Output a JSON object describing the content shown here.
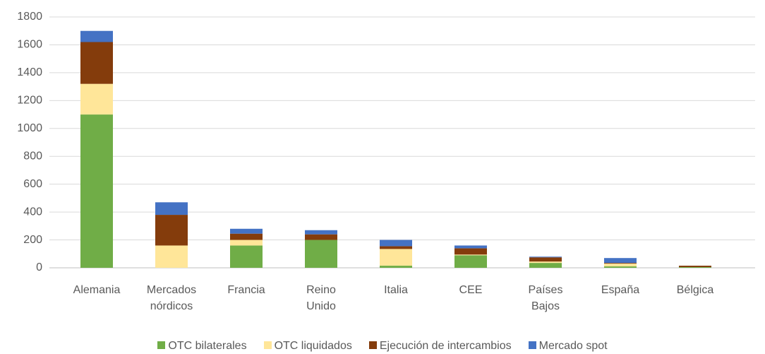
{
  "chart_data": {
    "type": "stacked_bar",
    "categories": [
      "Alemania",
      "Mercados nórdicos",
      "Francia",
      "Reino Unido",
      "Italia",
      "CEE",
      "Países Bajos",
      "España",
      "Bélgica"
    ],
    "series": [
      {
        "name": "OTC bilaterales",
        "color": "#70ad47",
        "values": [
          1100,
          0,
          160,
          200,
          15,
          90,
          35,
          10,
          5
        ]
      },
      {
        "name": "OTC liquidados",
        "color": "#ffe699",
        "values": [
          220,
          160,
          40,
          0,
          120,
          5,
          10,
          20,
          0
        ]
      },
      {
        "name": "Ejecución de intercambios",
        "color": "#843c0c",
        "values": [
          300,
          220,
          45,
          40,
          20,
          45,
          30,
          5,
          10
        ]
      },
      {
        "name": "Mercado spot",
        "color": "#4472c4",
        "values": [
          80,
          90,
          35,
          30,
          45,
          20,
          5,
          35,
          0
        ]
      }
    ],
    "ylim": [
      0,
      1800
    ],
    "yticks": [
      0,
      200,
      400,
      600,
      800,
      1000,
      1200,
      1400,
      1600,
      1800
    ],
    "grid": true
  }
}
